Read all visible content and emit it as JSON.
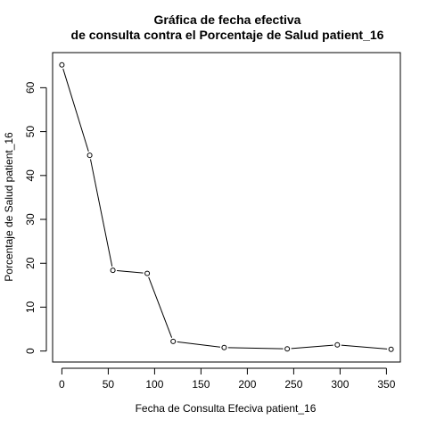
{
  "chart_data": {
    "type": "line",
    "title_line1": "Gráfica de fecha efectiva",
    "title_line2": "de consulta contra el Porcentaje de Salud  patient_16",
    "xlabel": "Fecha de Consulta Efeciva  patient_16",
    "ylabel": "Porcentaje de Salud  patient_16",
    "xlim": [
      -10,
      365
    ],
    "ylim": [
      -2.5,
      68
    ],
    "xticks": [
      0,
      50,
      100,
      150,
      200,
      250,
      300,
      350
    ],
    "yticks": [
      0,
      10,
      20,
      30,
      40,
      50,
      60
    ],
    "grid": false,
    "marker": "open-circle",
    "line_color": "#000000",
    "series": [
      {
        "x": [
          0,
          30,
          55,
          92,
          120,
          175,
          243,
          297,
          355
        ],
        "y": [
          65.2,
          44.6,
          18.4,
          17.7,
          2.2,
          0.8,
          0.5,
          1.4,
          0.4
        ]
      }
    ]
  }
}
